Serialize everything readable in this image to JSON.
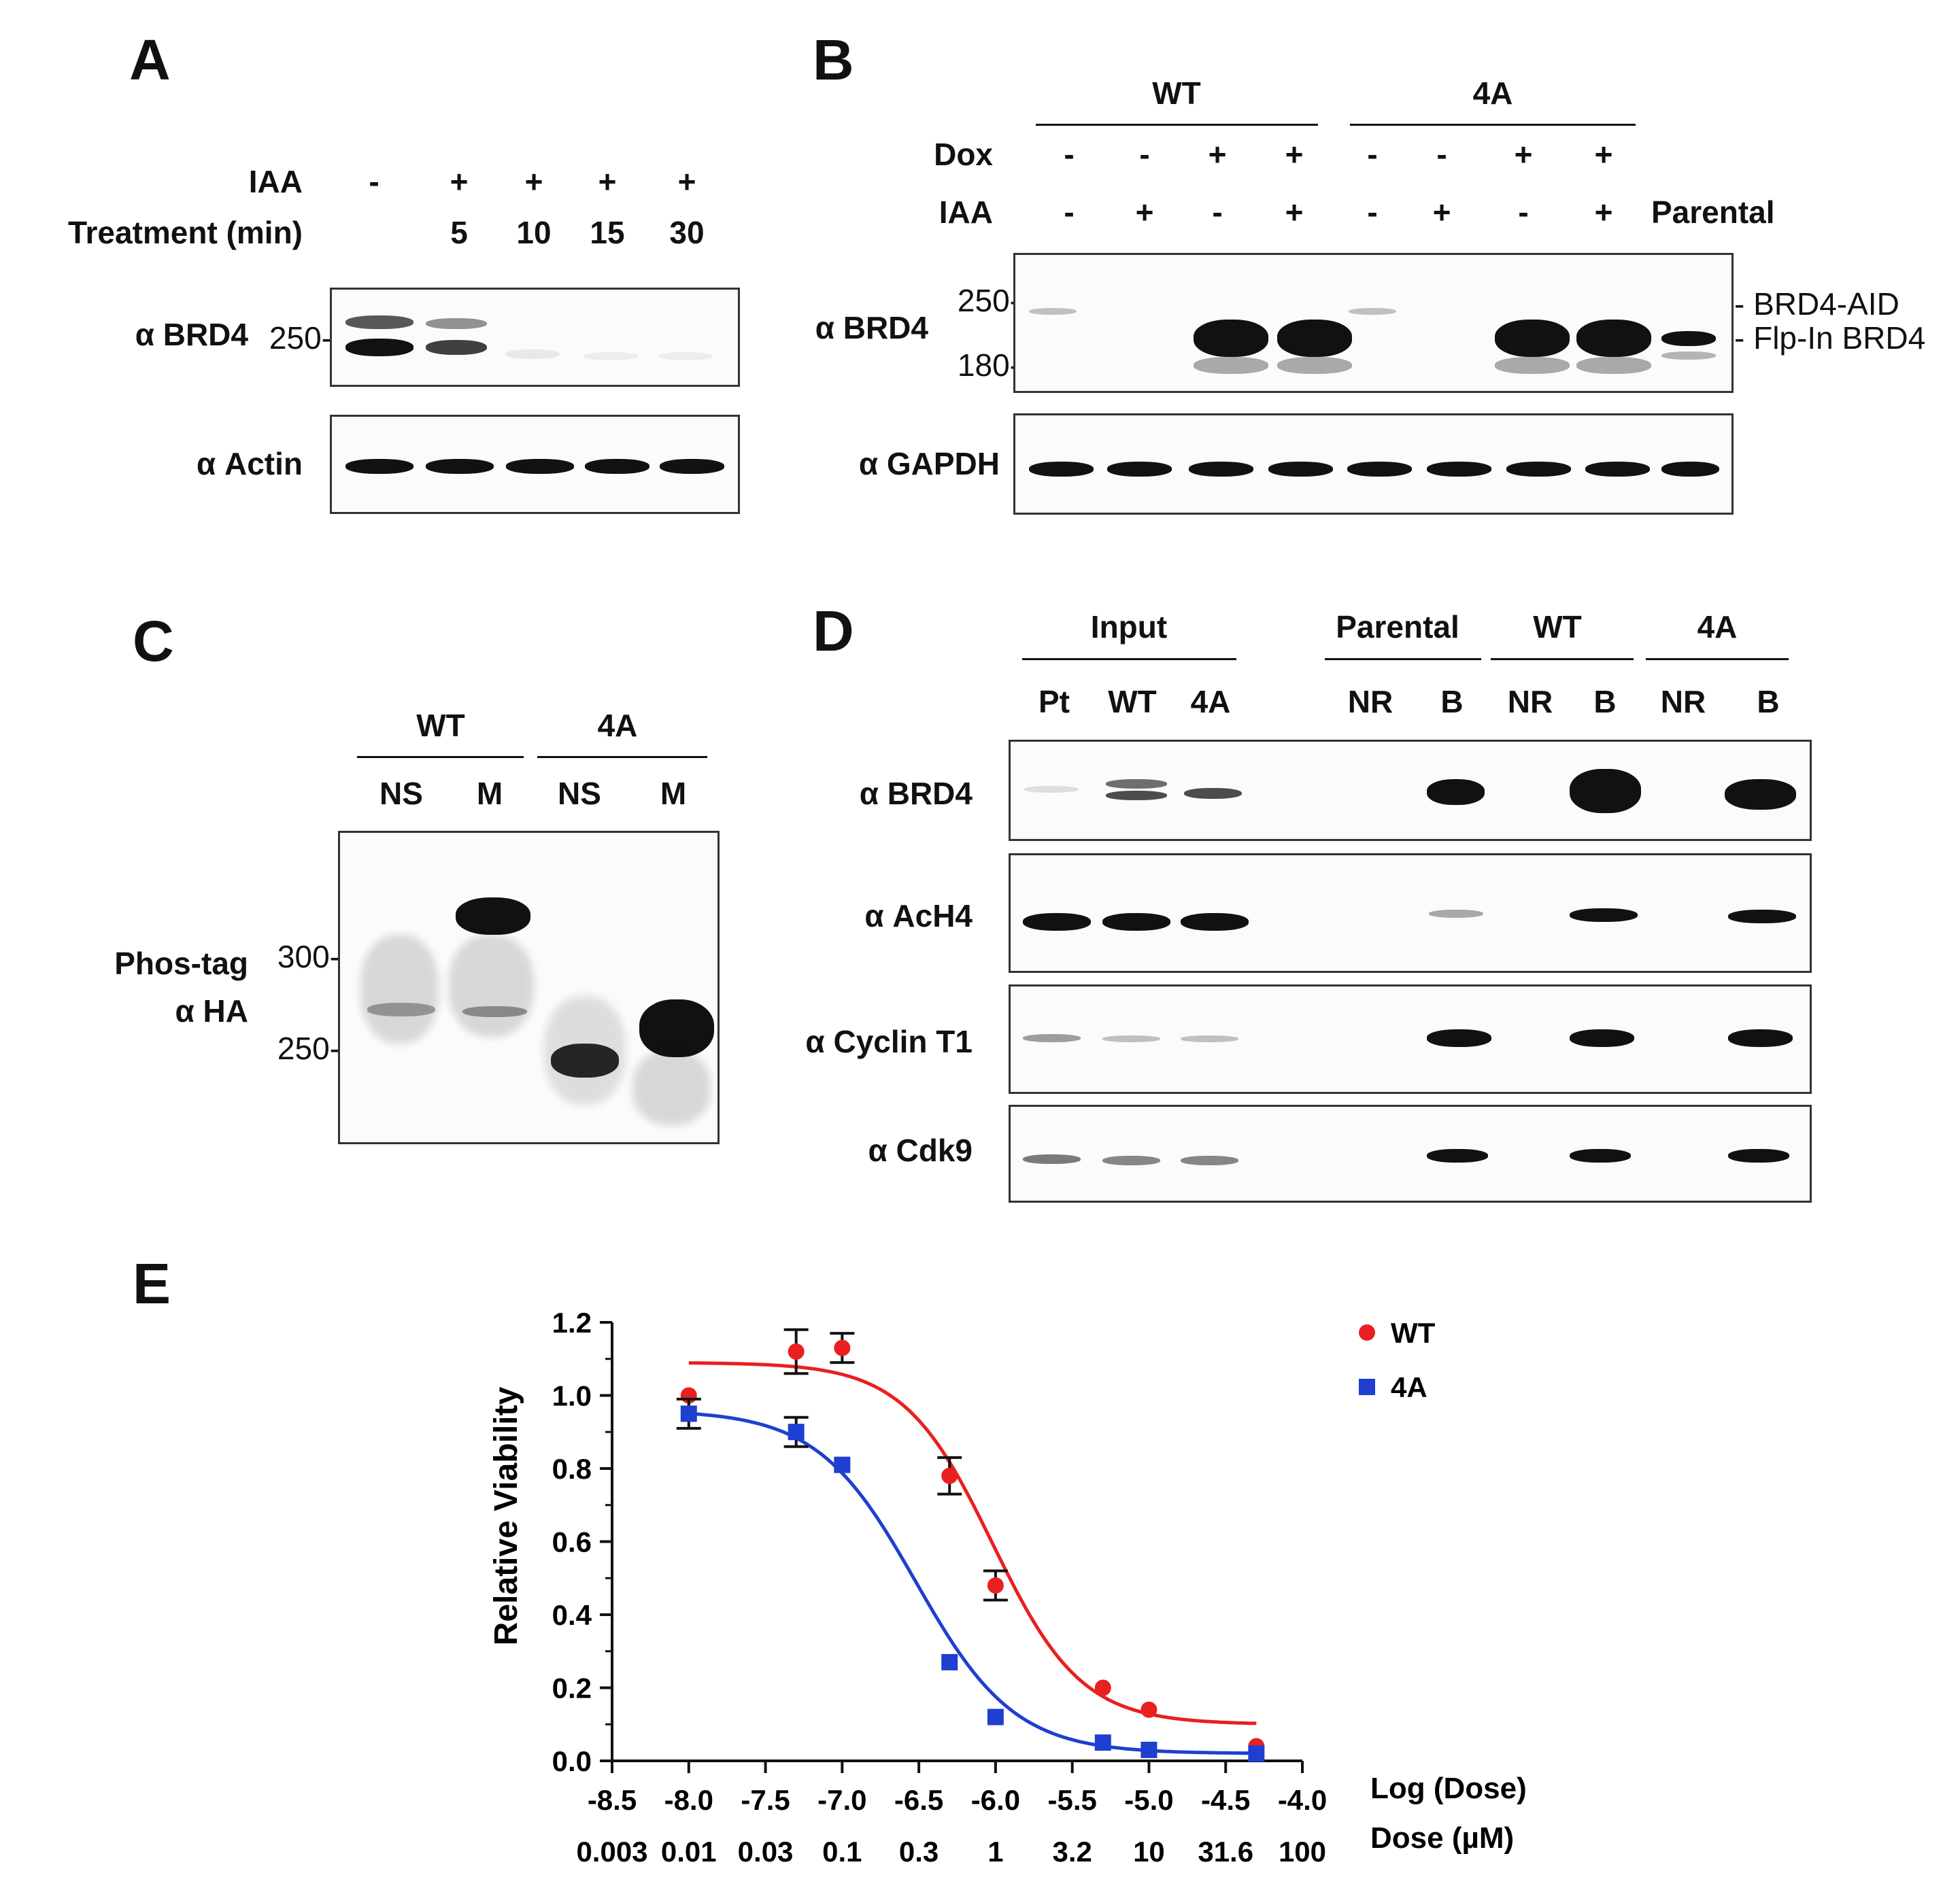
{
  "panels": {
    "A": {
      "letter": "A",
      "iaa_label": "IAA",
      "iaa": [
        "-",
        "+",
        "+",
        "+",
        "+"
      ],
      "treatment_label": "Treatment (min)",
      "treatment": [
        "",
        "5",
        "10",
        "15",
        "30"
      ],
      "blot_labels": [
        "α BRD4",
        "α Actin"
      ],
      "marker": "250-"
    },
    "B": {
      "letter": "B",
      "groups": [
        "WT",
        "4A"
      ],
      "dox_label": "Dox",
      "dox": [
        "-",
        "-",
        "+",
        "+",
        "-",
        "-",
        "+",
        "+"
      ],
      "iaa_label": "IAA",
      "iaa": [
        "-",
        "+",
        "-",
        "+",
        "-",
        "+",
        "-",
        "+"
      ],
      "parental": "Parental",
      "blot_labels": [
        "α BRD4",
        "α GAPDH"
      ],
      "markers": [
        "250-",
        "180-"
      ],
      "right_labels": [
        "- BRD4-AID",
        "- Flp-In BRD4"
      ]
    },
    "C": {
      "letter": "C",
      "groups": [
        "WT",
        "4A"
      ],
      "lanes": [
        "NS",
        "M",
        "NS",
        "M"
      ],
      "blot_label": [
        "Phos-tag",
        "α HA"
      ],
      "markers": [
        "300-",
        "250-"
      ]
    },
    "D": {
      "letter": "D",
      "groups": [
        "Input",
        "Parental",
        "WT",
        "4A"
      ],
      "lanes": [
        "Pt",
        "WT",
        "4A",
        "NR",
        "B",
        "NR",
        "B",
        "NR",
        "B"
      ],
      "blot_labels": [
        "α BRD4",
        "α AcH4",
        "α Cyclin T1",
        "α Cdk9"
      ]
    },
    "E": {
      "letter": "E"
    }
  },
  "chart_data": {
    "type": "scatter",
    "title": "",
    "ylabel": "Relative Viability",
    "xlabel": "Log (Dose)",
    "xlabel2": "Dose (µM)",
    "xlim": [
      -8.5,
      -4.0
    ],
    "ylim": [
      0.0,
      1.2
    ],
    "xticks": [
      "-8.5",
      "-8.0",
      "-7.5",
      "-7.0",
      "-6.5",
      "-6.0",
      "-5.5",
      "-5.0",
      "-4.5",
      "-4.0"
    ],
    "yticks": [
      "0.0",
      "0.2",
      "0.4",
      "0.6",
      "0.8",
      "1.0",
      "1.2"
    ],
    "dose_ticks": [
      {
        "x": -8.5,
        "label": "0.003"
      },
      {
        "x": -8.0,
        "label": "0.01"
      },
      {
        "x": -7.5,
        "label": "0.03"
      },
      {
        "x": -7.0,
        "label": "0.1"
      },
      {
        "x": -6.5,
        "label": "0.3"
      },
      {
        "x": -6.0,
        "label": "1"
      },
      {
        "x": -5.5,
        "label": "3.2"
      },
      {
        "x": -5.0,
        "label": "10"
      },
      {
        "x": -4.5,
        "label": "31.6"
      },
      {
        "x": -4.0,
        "label": "100"
      }
    ],
    "legend_position": "top-right",
    "series": [
      {
        "name": "WT",
        "color": "#e8201f",
        "marker": "circle",
        "x": [
          -8.0,
          -7.3,
          -7.0,
          -6.3,
          -6.0,
          -5.3,
          -5.0,
          -4.3
        ],
        "y": [
          1.0,
          1.12,
          1.13,
          0.78,
          0.48,
          0.2,
          0.14,
          0.04
        ],
        "err": [
          0.0,
          0.06,
          0.04,
          0.05,
          0.04,
          0.0,
          0.0,
          0.0
        ],
        "fit": {
          "top": 1.09,
          "bottom": 0.1,
          "logec50": -6.02,
          "hill": 1.5
        }
      },
      {
        "name": "4A",
        "color": "#1f3fd0",
        "marker": "square",
        "x": [
          -8.0,
          -7.3,
          -7.0,
          -6.3,
          -6.0,
          -5.3,
          -5.0,
          -4.3
        ],
        "y": [
          0.95,
          0.9,
          0.81,
          0.27,
          0.12,
          0.05,
          0.03,
          0.02
        ],
        "err": [
          0.04,
          0.04,
          0.0,
          0.0,
          0.0,
          0.0,
          0.0,
          0.0
        ],
        "fit": {
          "top": 0.96,
          "bottom": 0.02,
          "logec50": -6.52,
          "hill": 1.35
        }
      }
    ]
  }
}
